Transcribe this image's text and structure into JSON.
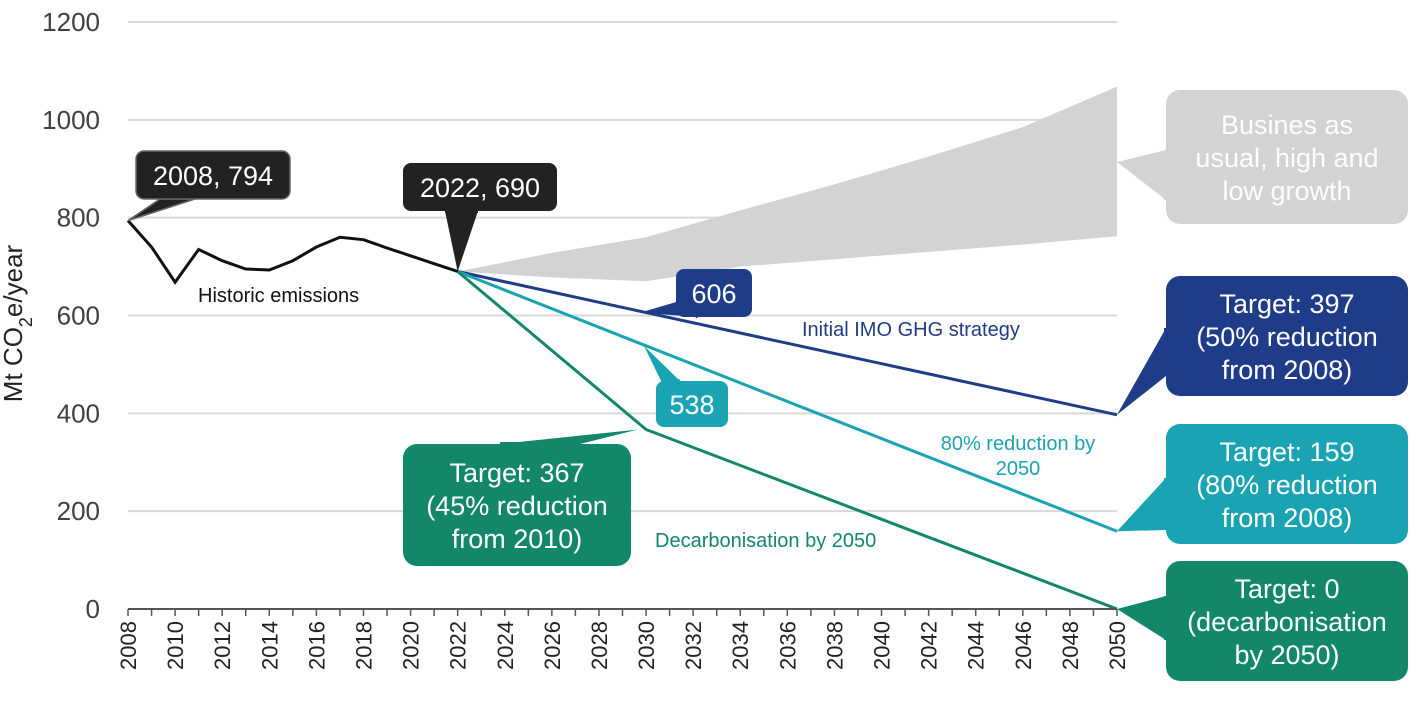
{
  "chart_data": {
    "type": "line",
    "title": "",
    "xlabel": "",
    "ylabel": "Mt CO",
    "ylabel_sub": "2",
    "ylabel_rest": "e/year",
    "xlim": [
      2008,
      2050
    ],
    "ylim": [
      0,
      1200
    ],
    "y_ticks": [
      "0",
      "200",
      "400",
      "600",
      "800",
      "1000",
      "1200"
    ],
    "x_ticks": [
      "2008",
      "2010",
      "2012",
      "2014",
      "2016",
      "2018",
      "2020",
      "2022",
      "2024",
      "2026",
      "2028",
      "2030",
      "2032",
      "2034",
      "2036",
      "2038",
      "2040",
      "2042",
      "2044",
      "2046",
      "2048",
      "2050"
    ],
    "grid": "horizontal",
    "colors": {
      "historic": "#111111",
      "imo": "#1f3c88",
      "eighty": "#1aa3b2",
      "decarb": "#12876a",
      "bau": "#d3d3d3",
      "dark_callout": "#222222",
      "axis": "#555555",
      "grid": "#d9d9d9"
    },
    "historic": {
      "name": "Historic emissions",
      "x": [
        2008,
        2009,
        2010,
        2011,
        2012,
        2013,
        2014,
        2015,
        2016,
        2017,
        2018,
        2019,
        2020,
        2021,
        2022
      ],
      "y": [
        794,
        740,
        668,
        735,
        712,
        695,
        693,
        712,
        740,
        760,
        755,
        738,
        722,
        706,
        690
      ]
    },
    "bau_band": {
      "name": "Busines as usual, high and low growth",
      "x": [
        2022,
        2026,
        2030,
        2034,
        2038,
        2042,
        2046,
        2050
      ],
      "upper": [
        690,
        728,
        760,
        815,
        868,
        925,
        985,
        1068
      ],
      "lower": [
        690,
        678,
        670,
        700,
        715,
        730,
        745,
        762
      ]
    },
    "series": [
      {
        "name": "Initial IMO GHG strategy",
        "x": [
          2022,
          2030,
          2050
        ],
        "y": [
          690,
          606,
          397
        ]
      },
      {
        "name": "80% reduction by 2050",
        "x": [
          2022,
          2030,
          2050
        ],
        "y": [
          690,
          538,
          159
        ]
      },
      {
        "name": "Decarbonisation by 2050",
        "x": [
          2022,
          2030,
          2050
        ],
        "y": [
          690,
          367,
          0
        ]
      }
    ],
    "annotations": {
      "start": "2008, 794",
      "current": "2022, 690",
      "imo_2030": "606",
      "eighty_2030": "538",
      "bau_label": [
        "Busines as",
        "usual, high and",
        "low growth"
      ],
      "target_397": [
        "Target: 397",
        "(50% reduction",
        "from 2008)"
      ],
      "target_159": [
        "Target: 159",
        "(80% reduction",
        "from 2008)"
      ],
      "target_0": [
        "Target: 0",
        "(decarbonisation",
        "by 2050)"
      ],
      "target_367": [
        "Target: 367",
        "(45% reduction",
        "from 2010)"
      ],
      "historic_label": "Historic emissions",
      "imo_label": "Initial IMO GHG strategy",
      "eighty_label": [
        "80% reduction by",
        "2050"
      ],
      "decarb_label": "Decarbonisation by 2050"
    }
  }
}
